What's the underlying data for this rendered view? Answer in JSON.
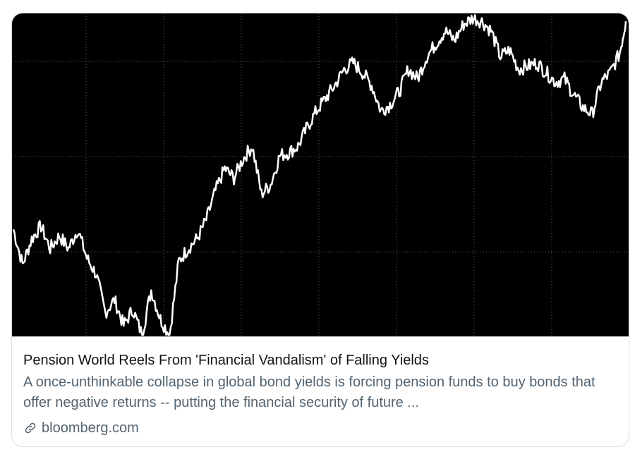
{
  "card": {
    "title": "Pension World Reels From 'Financial Vandalism' of Falling Yields",
    "description": "A once-unthinkable collapse in global bond yields is forcing pension funds to buy bonds that offer negative returns -- putting the financial security of future ...",
    "domain": "bloomberg.com",
    "link_icon": "link-icon"
  },
  "chart_data": {
    "type": "line",
    "grid": true,
    "background": "#000000",
    "line_color": "#ffffff",
    "ylim": [
      0,
      100
    ],
    "series": [
      {
        "values": [
          [
            0,
            33
          ],
          [
            1.5,
            22
          ],
          [
            3,
            30
          ],
          [
            4.5,
            34
          ],
          [
            6,
            27
          ],
          [
            7.5,
            31
          ],
          [
            9,
            27
          ],
          [
            10.5,
            33
          ],
          [
            12,
            24
          ],
          [
            13.5,
            19
          ],
          [
            15,
            7
          ],
          [
            16.5,
            11
          ],
          [
            18,
            3
          ],
          [
            19.5,
            8
          ],
          [
            21,
            0
          ],
          [
            22.5,
            14
          ],
          [
            24,
            5
          ],
          [
            25.5,
            0
          ],
          [
            27,
            23
          ],
          [
            28.5,
            27
          ],
          [
            30,
            30
          ],
          [
            31.5,
            36
          ],
          [
            33,
            45
          ],
          [
            34.5,
            52
          ],
          [
            36,
            49
          ],
          [
            37.5,
            55
          ],
          [
            39,
            59
          ],
          [
            40.5,
            44
          ],
          [
            42,
            47
          ],
          [
            43.5,
            56
          ],
          [
            45,
            57
          ],
          [
            46.5,
            59
          ],
          [
            48,
            65
          ],
          [
            49.5,
            70
          ],
          [
            51,
            74
          ],
          [
            52.5,
            78
          ],
          [
            54,
            83
          ],
          [
            55.5,
            85
          ],
          [
            57,
            82
          ],
          [
            58.5,
            78
          ],
          [
            60,
            70
          ],
          [
            61.5,
            72
          ],
          [
            63,
            76
          ],
          [
            64.5,
            83
          ],
          [
            66,
            80
          ],
          [
            67.5,
            87
          ],
          [
            69,
            91
          ],
          [
            70.5,
            95
          ],
          [
            72,
            92
          ],
          [
            73.5,
            97
          ],
          [
            75,
            99
          ],
          [
            76.5,
            98
          ],
          [
            78,
            95
          ],
          [
            79.5,
            87
          ],
          [
            81,
            89
          ],
          [
            82.5,
            83
          ],
          [
            84,
            84
          ],
          [
            85.5,
            85
          ],
          [
            87,
            82
          ],
          [
            88.5,
            79
          ],
          [
            90,
            80
          ],
          [
            91.5,
            75
          ],
          [
            93,
            71
          ],
          [
            94.5,
            69
          ],
          [
            96,
            79
          ],
          [
            97.5,
            82
          ],
          [
            99,
            88
          ],
          [
            100,
            98
          ]
        ]
      }
    ]
  }
}
